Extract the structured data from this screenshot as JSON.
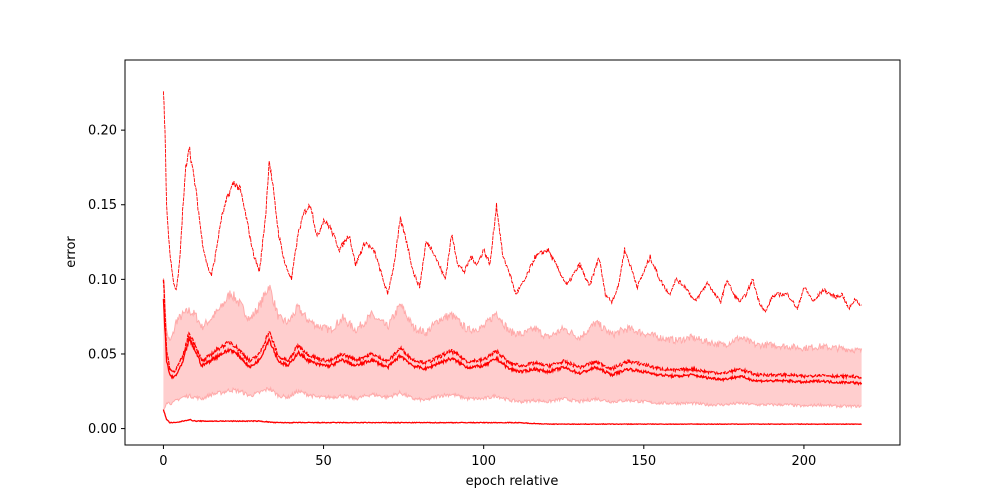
{
  "chart_data": {
    "type": "line",
    "title": "",
    "xlabel": "epoch relative",
    "ylabel": "error",
    "xlim": [
      -12,
      230
    ],
    "ylim": [
      -0.011,
      0.247
    ],
    "x_ticks": [
      0,
      50,
      100,
      150,
      200
    ],
    "x_tick_labels": [
      "0",
      "50",
      "100",
      "150",
      "200"
    ],
    "y_ticks": [
      0.0,
      0.05,
      0.1,
      0.15,
      0.2
    ],
    "y_tick_labels": [
      "0.00",
      "0.05",
      "0.10",
      "0.15",
      "0.20"
    ],
    "grid": false,
    "legend": "none",
    "band": {
      "color": "#ffb3b3",
      "edge_color": "#ffaaaa",
      "x": [
        0,
        1,
        2,
        3,
        4,
        6,
        8,
        10,
        12,
        15,
        18,
        21,
        24,
        27,
        30,
        33,
        36,
        39,
        42,
        45,
        48,
        52,
        56,
        60,
        65,
        70,
        74,
        78,
        82,
        86,
        90,
        95,
        100,
        104,
        108,
        112,
        116,
        120,
        125,
        130,
        135,
        140,
        145,
        150,
        155,
        160,
        165,
        170,
        175,
        180,
        185,
        190,
        195,
        200,
        205,
        210,
        215,
        218
      ],
      "upper": [
        0.105,
        0.065,
        0.058,
        0.063,
        0.072,
        0.076,
        0.079,
        0.076,
        0.068,
        0.074,
        0.081,
        0.091,
        0.083,
        0.073,
        0.082,
        0.096,
        0.074,
        0.071,
        0.081,
        0.073,
        0.069,
        0.066,
        0.074,
        0.066,
        0.076,
        0.068,
        0.083,
        0.068,
        0.064,
        0.073,
        0.076,
        0.066,
        0.068,
        0.078,
        0.065,
        0.063,
        0.067,
        0.061,
        0.067,
        0.061,
        0.071,
        0.063,
        0.067,
        0.064,
        0.061,
        0.059,
        0.061,
        0.058,
        0.056,
        0.061,
        0.056,
        0.056,
        0.055,
        0.054,
        0.055,
        0.054,
        0.053,
        0.052
      ],
      "lower": [
        0.012,
        0.018,
        0.017,
        0.017,
        0.019,
        0.021,
        0.022,
        0.021,
        0.02,
        0.023,
        0.024,
        0.026,
        0.025,
        0.022,
        0.024,
        0.027,
        0.022,
        0.021,
        0.025,
        0.023,
        0.021,
        0.021,
        0.022,
        0.02,
        0.023,
        0.021,
        0.024,
        0.02,
        0.019,
        0.022,
        0.023,
        0.02,
        0.02,
        0.022,
        0.019,
        0.018,
        0.019,
        0.018,
        0.02,
        0.018,
        0.02,
        0.018,
        0.019,
        0.018,
        0.017,
        0.017,
        0.017,
        0.016,
        0.016,
        0.017,
        0.016,
        0.016,
        0.016,
        0.015,
        0.016,
        0.015,
        0.015,
        0.015
      ]
    },
    "series": [
      {
        "color": "#ff0000",
        "style": "dashed",
        "x": [
          0,
          0.5,
          1,
          2,
          3,
          4,
          5,
          6,
          7,
          8,
          9,
          10,
          11,
          12,
          13,
          14,
          15,
          16,
          18,
          20,
          22,
          24,
          26,
          28,
          30,
          32,
          33,
          34,
          36,
          38,
          40,
          42,
          44,
          46,
          48,
          50,
          52,
          55,
          58,
          60,
          63,
          66,
          70,
          72,
          74,
          76,
          78,
          80,
          82,
          84,
          86,
          88,
          90,
          92,
          94,
          96,
          98,
          100,
          102,
          104,
          106,
          108,
          110,
          113,
          116,
          120,
          123,
          126,
          130,
          133,
          136,
          138,
          140,
          142,
          144,
          146,
          148,
          150,
          152,
          155,
          158,
          160,
          163,
          166,
          170,
          172,
          174,
          176,
          178,
          180,
          182,
          184,
          186,
          188,
          190,
          192,
          195,
          198,
          200,
          203,
          206,
          210,
          212,
          214,
          216,
          218
        ],
        "y": [
          0.225,
          0.2,
          0.148,
          0.118,
          0.1,
          0.092,
          0.11,
          0.145,
          0.175,
          0.19,
          0.175,
          0.162,
          0.145,
          0.127,
          0.116,
          0.107,
          0.103,
          0.113,
          0.14,
          0.155,
          0.165,
          0.16,
          0.14,
          0.118,
          0.105,
          0.145,
          0.18,
          0.165,
          0.13,
          0.11,
          0.1,
          0.13,
          0.145,
          0.15,
          0.128,
          0.14,
          0.135,
          0.12,
          0.13,
          0.11,
          0.125,
          0.118,
          0.09,
          0.11,
          0.14,
          0.125,
          0.105,
          0.095,
          0.125,
          0.12,
          0.11,
          0.1,
          0.13,
          0.11,
          0.105,
          0.115,
          0.11,
          0.12,
          0.11,
          0.15,
          0.115,
          0.105,
          0.09,
          0.1,
          0.115,
          0.12,
          0.108,
          0.096,
          0.11,
          0.095,
          0.115,
          0.09,
          0.085,
          0.095,
          0.12,
          0.108,
          0.095,
          0.105,
          0.115,
          0.1,
          0.09,
          0.1,
          0.095,
          0.085,
          0.098,
          0.09,
          0.085,
          0.1,
          0.09,
          0.085,
          0.09,
          0.1,
          0.085,
          0.078,
          0.088,
          0.09,
          0.09,
          0.08,
          0.095,
          0.085,
          0.093,
          0.088,
          0.09,
          0.08,
          0.087,
          0.082
        ]
      },
      {
        "color": "#ff0000",
        "style": "dashed",
        "x": [
          0,
          1,
          2,
          3,
          4,
          6,
          8,
          10,
          12,
          15,
          18,
          21,
          24,
          27,
          30,
          33,
          36,
          39,
          42,
          45,
          48,
          52,
          56,
          60,
          65,
          70,
          74,
          78,
          82,
          86,
          90,
          95,
          100,
          104,
          108,
          112,
          116,
          120,
          125,
          130,
          135,
          140,
          145,
          150,
          155,
          160,
          165,
          170,
          175,
          180,
          185,
          190,
          195,
          200,
          205,
          210,
          215,
          218
        ],
        "y": [
          0.1,
          0.052,
          0.04,
          0.038,
          0.04,
          0.048,
          0.064,
          0.056,
          0.045,
          0.05,
          0.055,
          0.058,
          0.052,
          0.045,
          0.05,
          0.065,
          0.048,
          0.045,
          0.056,
          0.05,
          0.047,
          0.045,
          0.05,
          0.046,
          0.05,
          0.045,
          0.054,
          0.046,
          0.044,
          0.048,
          0.052,
          0.045,
          0.046,
          0.052,
          0.044,
          0.042,
          0.044,
          0.042,
          0.045,
          0.041,
          0.045,
          0.04,
          0.045,
          0.043,
          0.04,
          0.039,
          0.04,
          0.038,
          0.037,
          0.04,
          0.036,
          0.036,
          0.036,
          0.035,
          0.036,
          0.035,
          0.035,
          0.034
        ]
      },
      {
        "color": "#ff0000",
        "style": "solid",
        "x": [
          0,
          1,
          2,
          3,
          4,
          6,
          8,
          10,
          12,
          15,
          18,
          21,
          24,
          27,
          30,
          33,
          36,
          39,
          42,
          45,
          48,
          52,
          56,
          60,
          65,
          70,
          74,
          78,
          82,
          86,
          90,
          95,
          100,
          104,
          108,
          112,
          116,
          120,
          125,
          130,
          135,
          140,
          145,
          150,
          155,
          160,
          165,
          170,
          175,
          180,
          185,
          190,
          195,
          200,
          205,
          210,
          215,
          218
        ],
        "y": [
          0.085,
          0.045,
          0.036,
          0.034,
          0.036,
          0.044,
          0.06,
          0.052,
          0.042,
          0.046,
          0.05,
          0.053,
          0.048,
          0.041,
          0.046,
          0.06,
          0.045,
          0.042,
          0.051,
          0.046,
          0.043,
          0.042,
          0.046,
          0.042,
          0.046,
          0.041,
          0.049,
          0.042,
          0.04,
          0.044,
          0.047,
          0.041,
          0.042,
          0.047,
          0.04,
          0.038,
          0.04,
          0.038,
          0.041,
          0.037,
          0.041,
          0.036,
          0.04,
          0.038,
          0.036,
          0.035,
          0.036,
          0.034,
          0.033,
          0.035,
          0.032,
          0.032,
          0.032,
          0.031,
          0.032,
          0.031,
          0.031,
          0.03
        ]
      },
      {
        "color": "#ff0000",
        "style": "solid",
        "x": [
          0,
          1,
          2,
          4,
          6,
          8,
          10,
          15,
          20,
          25,
          30,
          35,
          40,
          50,
          60,
          70,
          80,
          90,
          100,
          110,
          120,
          140,
          160,
          180,
          200,
          218
        ],
        "y": [
          0.013,
          0.006,
          0.004,
          0.004,
          0.005,
          0.006,
          0.005,
          0.005,
          0.005,
          0.005,
          0.005,
          0.004,
          0.004,
          0.004,
          0.004,
          0.004,
          0.004,
          0.004,
          0.004,
          0.004,
          0.003,
          0.003,
          0.003,
          0.003,
          0.003,
          0.003
        ]
      }
    ]
  }
}
